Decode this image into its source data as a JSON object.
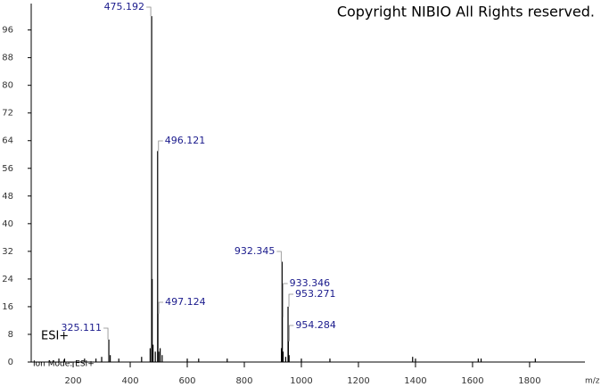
{
  "chart_data": {
    "type": "spectrum",
    "title": "Copyright NIBIO All Rights reserved.",
    "annotation": "ESI+",
    "footnote": "Ion Mode: ESI+",
    "x_label": "m/z",
    "x": [
      325.111,
      475.192,
      496.121,
      497.124,
      932.345,
      933.346,
      953.271,
      954.284
    ],
    "values": [
      6.5,
      100,
      61,
      14,
      29,
      13,
      16,
      6
    ],
    "minor_x": [
      150,
      170,
      240,
      280,
      300,
      330,
      360,
      440,
      470,
      477,
      480,
      488,
      500,
      505,
      512,
      600,
      640,
      740,
      930,
      936,
      945,
      957,
      1000,
      1100,
      1390,
      1400,
      1620,
      1630,
      1820
    ],
    "minor_values": [
      1,
      1,
      1,
      1,
      1.5,
      2,
      1,
      1.5,
      4,
      24,
      5,
      3,
      3,
      4,
      2,
      1,
      1,
      1,
      4,
      3,
      1.5,
      2,
      1,
      1,
      1.5,
      1,
      1,
      1,
      1
    ],
    "color": "#000000",
    "label_color": "#1a1a8c",
    "xlim": [
      53,
      1994
    ],
    "ylim": [
      0,
      102.5
    ],
    "xticks": [
      200,
      400,
      600,
      800,
      1000,
      1200,
      1400,
      1600,
      1800
    ],
    "yticks": [
      0,
      8,
      16,
      24,
      32,
      40,
      48,
      56,
      64,
      72,
      80,
      88,
      96
    ]
  }
}
